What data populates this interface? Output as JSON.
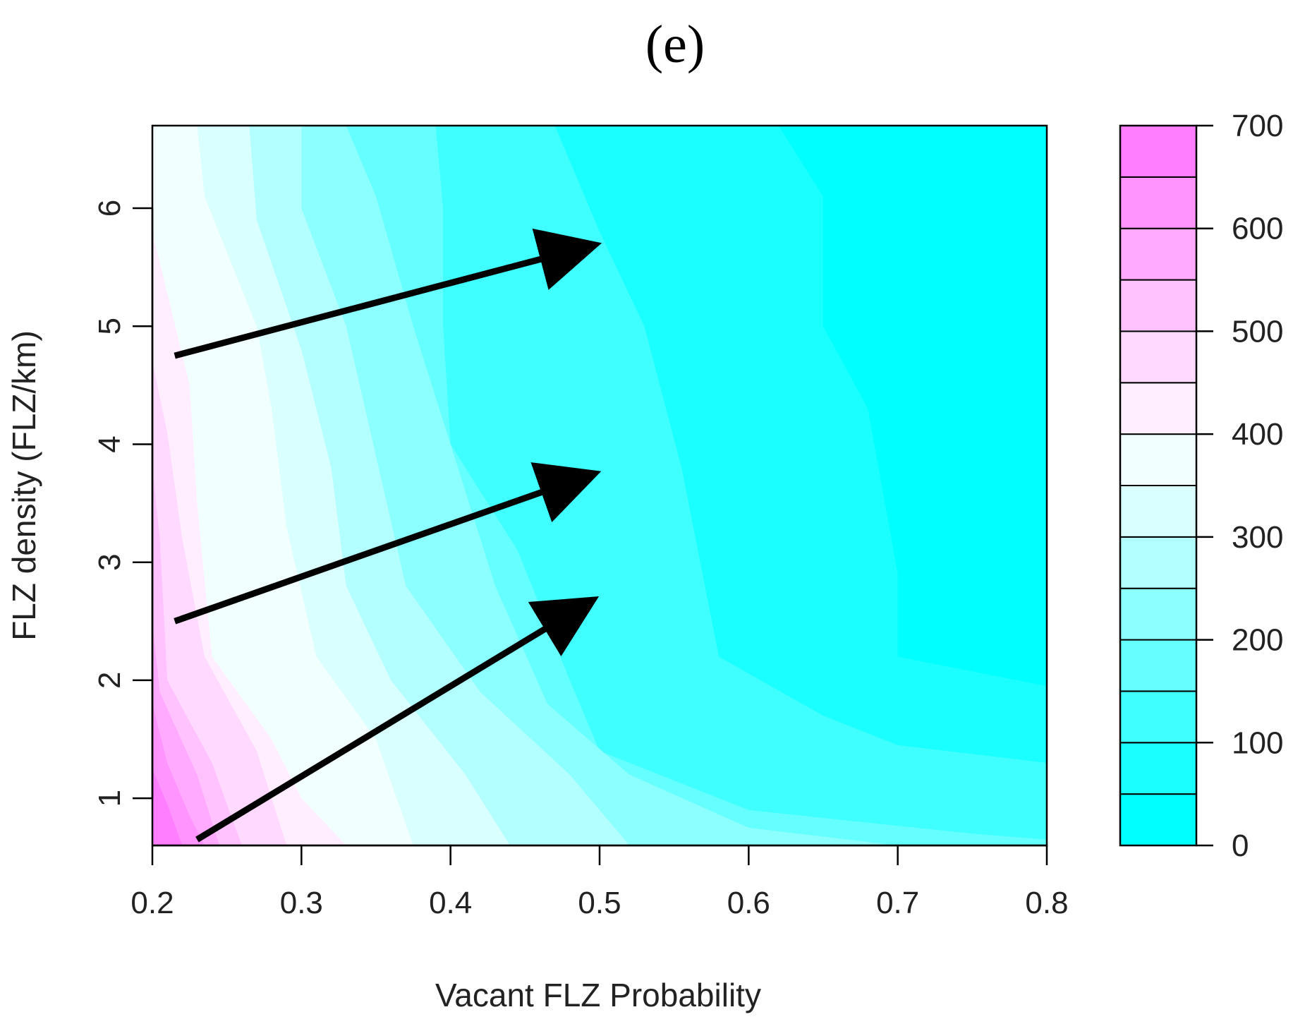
{
  "chart_data": {
    "type": "heatmap",
    "title": "(e)",
    "xlabel": "Vacant FLZ Probability",
    "ylabel": "FLZ density (FLZ/km)",
    "xlim": [
      0.2,
      0.8
    ],
    "ylim": [
      0.6,
      6.7
    ],
    "x_ticks": [
      0.2,
      0.3,
      0.4,
      0.5,
      0.6,
      0.7,
      0.8
    ],
    "x_tick_labels": [
      "0.2",
      "0.3",
      "0.4",
      "0.5",
      "0.6",
      "0.7",
      "0.8"
    ],
    "y_ticks": [
      1,
      2,
      3,
      4,
      5,
      6
    ],
    "y_tick_labels": [
      "1",
      "2",
      "3",
      "4",
      "5",
      "6"
    ],
    "legend": {
      "placement": "right",
      "range": [
        0,
        700
      ],
      "ticks": [
        0,
        100,
        200,
        300,
        400,
        500,
        600,
        700
      ],
      "tick_labels": [
        "0",
        "100",
        "200",
        "300",
        "400",
        "500",
        "600",
        "700"
      ],
      "levels": [
        {
          "from": 0,
          "to": 50,
          "color": "#00FFFF"
        },
        {
          "from": 50,
          "to": 100,
          "color": "#1AFFFF"
        },
        {
          "from": 100,
          "to": 150,
          "color": "#40FFFF"
        },
        {
          "from": 150,
          "to": 200,
          "color": "#66FFFF"
        },
        {
          "from": 200,
          "to": 250,
          "color": "#8CFFFF"
        },
        {
          "from": 250,
          "to": 300,
          "color": "#B3FFFF"
        },
        {
          "from": 300,
          "to": 350,
          "color": "#D9FFFF"
        },
        {
          "from": 350,
          "to": 400,
          "color": "#F2FFFF"
        },
        {
          "from": 400,
          "to": 450,
          "color": "#FFEEFF"
        },
        {
          "from": 450,
          "to": 500,
          "color": "#FFD9FF"
        },
        {
          "from": 500,
          "to": 550,
          "color": "#FFC2FF"
        },
        {
          "from": 550,
          "to": 600,
          "color": "#FFAAFF"
        },
        {
          "from": 600,
          "to": 650,
          "color": "#FF94FF"
        },
        {
          "from": 650,
          "to": 700,
          "color": "#FF7DFF"
        }
      ]
    },
    "contours": [
      {
        "level": 350,
        "color": "#D9FFFF",
        "points": [
          [
            0.23,
            6.7
          ],
          [
            0.235,
            6.1
          ],
          [
            0.27,
            5.0
          ],
          [
            0.28,
            4.3
          ],
          [
            0.29,
            3.3
          ],
          [
            0.31,
            2.2
          ],
          [
            0.35,
            1.5
          ],
          [
            0.375,
            0.6
          ]
        ]
      },
      {
        "level": 300,
        "color": "#B3FFFF",
        "points": [
          [
            0.265,
            6.7
          ],
          [
            0.27,
            5.9
          ],
          [
            0.3,
            4.8
          ],
          [
            0.32,
            3.8
          ],
          [
            0.33,
            2.8
          ],
          [
            0.36,
            2.0
          ],
          [
            0.41,
            1.2
          ],
          [
            0.44,
            0.6
          ]
        ]
      },
      {
        "level": 250,
        "color": "#8CFFFF",
        "points": [
          [
            0.3,
            6.7
          ],
          [
            0.3,
            6.0
          ],
          [
            0.33,
            5.0
          ],
          [
            0.35,
            3.9
          ],
          [
            0.37,
            2.8
          ],
          [
            0.42,
            1.9
          ],
          [
            0.48,
            1.2
          ],
          [
            0.52,
            0.6
          ]
        ]
      },
      {
        "level": 200,
        "color": "#66FFFF",
        "points": [
          [
            0.33,
            6.7
          ],
          [
            0.35,
            6.1
          ],
          [
            0.375,
            5.0
          ],
          [
            0.4,
            4.0
          ],
          [
            0.43,
            2.8
          ],
          [
            0.465,
            1.8
          ],
          [
            0.52,
            1.2
          ],
          [
            0.6,
            0.75
          ],
          [
            0.7,
            0.6
          ]
        ]
      },
      {
        "level": 150,
        "color": "#40FFFF",
        "points": [
          [
            0.39,
            6.7
          ],
          [
            0.395,
            6.0
          ],
          [
            0.395,
            5.0
          ],
          [
            0.4,
            4.0
          ],
          [
            0.445,
            3.1
          ],
          [
            0.48,
            2.0
          ],
          [
            0.5,
            1.4
          ],
          [
            0.6,
            0.9
          ],
          [
            0.75,
            0.7
          ],
          [
            0.8,
            0.65
          ]
        ]
      },
      {
        "level": 100,
        "color": "#1AFFFF",
        "points": [
          [
            0.47,
            6.7
          ],
          [
            0.5,
            5.8
          ],
          [
            0.53,
            5.0
          ],
          [
            0.555,
            3.8
          ],
          [
            0.58,
            2.2
          ],
          [
            0.65,
            1.7
          ],
          [
            0.7,
            1.45
          ],
          [
            0.8,
            1.3
          ]
        ]
      },
      {
        "level": 50,
        "color": "#00FFFF",
        "points": [
          [
            0.62,
            6.7
          ],
          [
            0.65,
            6.1
          ],
          [
            0.65,
            5.0
          ],
          [
            0.68,
            4.3
          ],
          [
            0.7,
            2.9
          ],
          [
            0.7,
            2.2
          ],
          [
            0.74,
            2.1
          ],
          [
            0.8,
            1.95
          ]
        ]
      },
      {
        "level": 400,
        "color": "#F2FFFF",
        "points": [
          [
            0.2,
            5.8
          ],
          [
            0.225,
            4.5
          ],
          [
            0.23,
            3.5
          ],
          [
            0.24,
            2.2
          ],
          [
            0.28,
            1.5
          ],
          [
            0.3,
            1.0
          ],
          [
            0.33,
            0.6
          ]
        ]
      },
      {
        "level": 450,
        "color": "#FFEEFF",
        "points": [
          [
            0.2,
            4.7
          ],
          [
            0.21,
            4.1
          ],
          [
            0.22,
            3.2
          ],
          [
            0.235,
            2.2
          ],
          [
            0.27,
            1.4
          ],
          [
            0.29,
            0.6
          ]
        ]
      },
      {
        "level": 500,
        "color": "#FFD9FF",
        "points": [
          [
            0.2,
            3.8
          ],
          [
            0.205,
            3.2
          ],
          [
            0.21,
            2.0
          ],
          [
            0.24,
            1.3
          ],
          [
            0.26,
            0.6
          ]
        ]
      },
      {
        "level": 550,
        "color": "#FFC2FF",
        "points": [
          [
            0.2,
            2.5
          ],
          [
            0.205,
            1.9
          ],
          [
            0.23,
            1.2
          ],
          [
            0.245,
            0.6
          ]
        ]
      },
      {
        "level": 600,
        "color": "#FFAAFF",
        "points": [
          [
            0.2,
            1.8
          ],
          [
            0.21,
            1.3
          ],
          [
            0.225,
            0.85
          ],
          [
            0.235,
            0.6
          ]
        ]
      },
      {
        "level": 650,
        "color": "#FF94FF",
        "points": [
          [
            0.2,
            1.25
          ],
          [
            0.21,
            0.95
          ],
          [
            0.22,
            0.6
          ]
        ]
      }
    ],
    "annotations": [
      {
        "type": "arrow",
        "from": [
          0.215,
          4.75
        ],
        "to": [
          0.485,
          5.65
        ]
      },
      {
        "type": "arrow",
        "from": [
          0.215,
          2.5
        ],
        "to": [
          0.485,
          3.7
        ]
      },
      {
        "type": "arrow",
        "from": [
          0.23,
          0.65
        ],
        "to": [
          0.485,
          2.6
        ]
      }
    ]
  }
}
